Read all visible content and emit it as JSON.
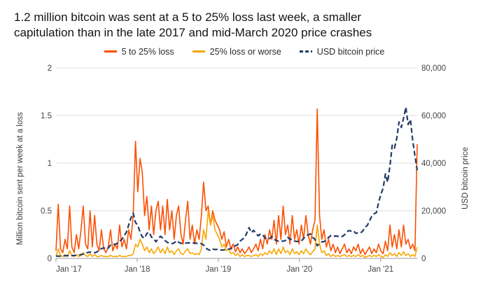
{
  "title": "1.2 million bitcoin was sent at a 5 to 25% loss last week, a smaller capitulation than in the late 2017 and mid-March 2020 price crashes",
  "chart_data": {
    "type": "line",
    "title": "1.2 million bitcoin was sent at a 5 to 25% loss last week, a smaller capitulation than in the late 2017 and mid-March 2020 price crashes",
    "grid": "horizontal",
    "legend_position": "top",
    "x_start": 2017.0,
    "x_end": 2021.45,
    "x_ticks": [
      {
        "value": 2017,
        "label": "Jan '17"
      },
      {
        "value": 2018,
        "label": "Jan '18"
      },
      {
        "value": 2019,
        "label": "Jan '19"
      },
      {
        "value": 2020,
        "label": "Jan '20"
      },
      {
        "value": 2021,
        "label": "Jan '21"
      }
    ],
    "left_axis": {
      "label": "Million bitcoin sent per week at a loss",
      "max": 2,
      "ticks": [
        0,
        0.5,
        1,
        1.5,
        2
      ],
      "tick_labels": [
        "0",
        "0.5",
        "1",
        "1.5",
        "2"
      ]
    },
    "right_axis": {
      "label": "USD bitcoin price",
      "max": 80000,
      "ticks": [
        0,
        20000,
        40000,
        60000,
        80000
      ],
      "tick_labels": [
        "0",
        "20,000",
        "40,000",
        "60,000",
        "80,000"
      ]
    },
    "series": [
      {
        "name": "5 to 25% loss",
        "color": "#fc4f00",
        "axis": "left",
        "style": "solid",
        "values": [
          0.08,
          0.57,
          0.1,
          0.06,
          0.2,
          0.1,
          0.55,
          0.12,
          0.06,
          0.25,
          0.1,
          0.3,
          0.55,
          0.15,
          0.1,
          0.5,
          0.12,
          0.45,
          0.15,
          0.08,
          0.3,
          0.1,
          0.06,
          0.12,
          0.3,
          0.08,
          0.15,
          0.1,
          0.35,
          0.12,
          0.2,
          0.1,
          0.3,
          0.2,
          0.45,
          1.23,
          0.7,
          1.05,
          0.9,
          0.45,
          0.65,
          0.3,
          0.55,
          0.25,
          0.5,
          0.6,
          0.3,
          0.55,
          0.25,
          0.62,
          0.3,
          0.5,
          0.2,
          0.45,
          0.55,
          0.25,
          0.15,
          0.4,
          0.6,
          0.2,
          0.35,
          0.15,
          0.3,
          0.2,
          0.45,
          0.8,
          0.5,
          0.55,
          0.35,
          0.5,
          0.4,
          0.35,
          0.3,
          0.2,
          0.28,
          0.12,
          0.2,
          0.1,
          0.15,
          0.07,
          0.12,
          0.06,
          0.1,
          0.05,
          0.08,
          0.12,
          0.06,
          0.1,
          0.15,
          0.08,
          0.2,
          0.1,
          0.25,
          0.15,
          0.3,
          0.2,
          0.4,
          0.15,
          0.45,
          0.2,
          0.55,
          0.25,
          0.35,
          0.15,
          0.45,
          0.2,
          0.3,
          0.15,
          0.35,
          0.2,
          0.45,
          0.25,
          0.15,
          0.3,
          0.4,
          1.57,
          0.45,
          0.2,
          0.3,
          0.12,
          0.2,
          0.08,
          0.15,
          0.06,
          0.12,
          0.05,
          0.1,
          0.15,
          0.06,
          0.1,
          0.05,
          0.12,
          0.08,
          0.15,
          0.05,
          0.1,
          0.04,
          0.08,
          0.12,
          0.05,
          0.1,
          0.06,
          0.15,
          0.08,
          0.05,
          0.18,
          0.08,
          0.35,
          0.12,
          0.25,
          0.1,
          0.3,
          0.12,
          0.35,
          0.15,
          0.2,
          0.1,
          0.15,
          0.08,
          1.2
        ]
      },
      {
        "name": "25% loss or worse",
        "color": "#f7a600",
        "axis": "left",
        "style": "solid",
        "values": [
          0.02,
          0.1,
          0.03,
          0.02,
          0.04,
          0.02,
          0.08,
          0.03,
          0.02,
          0.04,
          0.02,
          0.03,
          0.06,
          0.03,
          0.02,
          0.05,
          0.02,
          0.04,
          0.02,
          0.02,
          0.03,
          0.02,
          0.02,
          0.02,
          0.03,
          0.02,
          0.02,
          0.02,
          0.03,
          0.02,
          0.02,
          0.02,
          0.03,
          0.03,
          0.05,
          0.15,
          0.12,
          0.2,
          0.15,
          0.08,
          0.12,
          0.06,
          0.1,
          0.05,
          0.08,
          0.12,
          0.06,
          0.1,
          0.05,
          0.12,
          0.06,
          0.08,
          0.04,
          0.08,
          0.1,
          0.05,
          0.04,
          0.08,
          0.1,
          0.05,
          0.06,
          0.04,
          0.05,
          0.04,
          0.1,
          0.3,
          0.2,
          0.5,
          0.35,
          0.45,
          0.3,
          0.25,
          0.2,
          0.12,
          0.15,
          0.08,
          0.1,
          0.05,
          0.06,
          0.03,
          0.05,
          0.02,
          0.04,
          0.02,
          0.03,
          0.03,
          0.02,
          0.03,
          0.04,
          0.02,
          0.05,
          0.03,
          0.06,
          0.04,
          0.08,
          0.05,
          0.1,
          0.04,
          0.1,
          0.05,
          0.12,
          0.06,
          0.08,
          0.04,
          0.1,
          0.05,
          0.07,
          0.04,
          0.08,
          0.05,
          0.1,
          0.06,
          0.04,
          0.07,
          0.1,
          0.35,
          0.15,
          0.06,
          0.08,
          0.03,
          0.05,
          0.02,
          0.04,
          0.02,
          0.03,
          0.02,
          0.03,
          0.04,
          0.02,
          0.03,
          0.02,
          0.03,
          0.02,
          0.04,
          0.02,
          0.03,
          0.01,
          0.02,
          0.03,
          0.02,
          0.03,
          0.02,
          0.04,
          0.02,
          0.01,
          0.04,
          0.02,
          0.06,
          0.03,
          0.05,
          0.02,
          0.06,
          0.03,
          0.07,
          0.03,
          0.05,
          0.02,
          0.04,
          0.02,
          0.12
        ]
      },
      {
        "name": "USD bitcoin price",
        "color": "#243a66",
        "axis": "right",
        "style": "dashed",
        "values": [
          1000,
          950,
          980,
          1050,
          1100,
          1180,
          1200,
          1150,
          1250,
          1300,
          1350,
          1600,
          1800,
          2200,
          2500,
          2700,
          2500,
          2350,
          2700,
          3400,
          4100,
          4400,
          4000,
          4300,
          5600,
          6100,
          5800,
          6400,
          7200,
          8000,
          9500,
          11000,
          14000,
          17000,
          19000,
          15000,
          14000,
          11000,
          9000,
          8500,
          10500,
          11000,
          9000,
          8200,
          7000,
          8300,
          9300,
          8500,
          7500,
          6700,
          6400,
          6200,
          6500,
          7400,
          6800,
          6300,
          6500,
          6400,
          6500,
          6600,
          6400,
          6500,
          6300,
          6400,
          6200,
          5600,
          4300,
          3700,
          3300,
          3900,
          3700,
          3800,
          3600,
          3500,
          3600,
          3900,
          3900,
          4000,
          5100,
          5300,
          5800,
          7200,
          8000,
          8700,
          10700,
          12900,
          10800,
          11800,
          10500,
          9500,
          10200,
          10000,
          8500,
          8200,
          8300,
          9200,
          8000,
          7500,
          7200,
          7400,
          7200,
          7500,
          8800,
          8000,
          8100,
          7300,
          7100,
          7200,
          7300,
          8400,
          9300,
          9900,
          10300,
          8800,
          8000,
          5300,
          6200,
          6900,
          7100,
          7600,
          8800,
          9600,
          9200,
          9400,
          9300,
          9100,
          9200,
          9900,
          11100,
          11700,
          11400,
          11600,
          10500,
          10800,
          10700,
          11400,
          13100,
          13800,
          15600,
          17800,
          18700,
          19200,
          23400,
          27000,
          29400,
          35500,
          32000,
          38900,
          47500,
          46300,
          50400,
          57300,
          55000,
          58900,
          63500,
          56200,
          58300,
          49700,
          43000,
          37000
        ]
      }
    ]
  }
}
